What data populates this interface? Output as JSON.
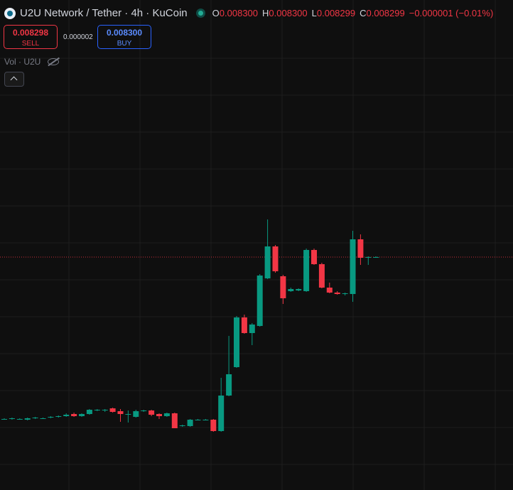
{
  "header": {
    "symbol": "U2U Network / Tether · 4h · KuCoin",
    "o_label": "O",
    "o": "0.008300",
    "h_label": "H",
    "h": "0.008300",
    "l_label": "L",
    "l": "0.008299",
    "c_label": "C",
    "c": "0.008299",
    "change": "−0.000001 (−0.01%)",
    "sell_price": "0.008298",
    "sell": "SELL",
    "spread": "0.000002",
    "buy_price": "0.008300",
    "buy": "BUY",
    "volume": "Vol · U2U"
  },
  "chart_data": {
    "type": "candlestick",
    "up_color": "#089981",
    "down_color": "#f23645",
    "ylim": [
      0.00502,
      0.01192
    ],
    "open": [
      0.00602,
      0.00602,
      0.00602,
      0.00601,
      0.00603,
      0.00603,
      0.00604,
      0.00605,
      0.00606,
      0.00609,
      0.00606,
      0.00609,
      0.00614,
      0.00614,
      0.00617,
      0.00613,
      0.00609,
      0.00605,
      0.00613,
      0.00614,
      0.00609,
      0.00606,
      0.0061,
      0.00592,
      0.00592,
      0.00601,
      0.00601,
      0.00601,
      0.00585,
      0.00635,
      0.00675,
      0.00745,
      0.00723,
      0.00733,
      0.008,
      0.00845,
      0.00803,
      0.00782,
      0.00783,
      0.00782,
      0.0084,
      0.0082,
      0.00787,
      0.0078,
      0.00778,
      0.00778,
      0.00855,
      0.00829,
      0.0083
    ],
    "high": [
      0.00603,
      0.00604,
      0.00603,
      0.00604,
      0.00605,
      0.00604,
      0.00606,
      0.00607,
      0.0061,
      0.00611,
      0.0061,
      0.00616,
      0.00616,
      0.00616,
      0.00618,
      0.00616,
      0.00614,
      0.00615,
      0.00615,
      0.00615,
      0.0061,
      0.00611,
      0.00611,
      0.00594,
      0.00602,
      0.00602,
      0.00602,
      0.00602,
      0.0066,
      0.00719,
      0.00747,
      0.00749,
      0.00737,
      0.00806,
      0.00883,
      0.00847,
      0.00805,
      0.00787,
      0.00786,
      0.00842,
      0.00842,
      0.00822,
      0.00794,
      0.00782,
      0.0078,
      0.00867,
      0.00862,
      0.00831,
      0.00831
    ],
    "low": [
      0.00601,
      0.00601,
      0.00601,
      0.006,
      0.00602,
      0.00602,
      0.00603,
      0.00604,
      0.00605,
      0.00605,
      0.00605,
      0.00608,
      0.00613,
      0.00612,
      0.00611,
      0.00598,
      0.00597,
      0.00604,
      0.00612,
      0.00606,
      0.00602,
      0.00605,
      0.00589,
      0.00591,
      0.00591,
      0.006,
      0.006,
      0.00584,
      0.00584,
      0.00634,
      0.00674,
      0.00722,
      0.00706,
      0.00732,
      0.00799,
      0.00808,
      0.00764,
      0.00781,
      0.00782,
      0.00781,
      0.00819,
      0.00786,
      0.00779,
      0.00777,
      0.00776,
      0.00767,
      0.00819,
      0.00819,
      0.00829
    ],
    "close": [
      0.00602,
      0.00603,
      0.00602,
      0.00603,
      0.00604,
      0.00603,
      0.00605,
      0.00606,
      0.00608,
      0.00606,
      0.00609,
      0.00615,
      0.00615,
      0.00615,
      0.00612,
      0.00609,
      0.00609,
      0.00613,
      0.00614,
      0.00608,
      0.00606,
      0.0061,
      0.00589,
      0.00593,
      0.00601,
      0.00601,
      0.00601,
      0.00585,
      0.00635,
      0.00665,
      0.00745,
      0.00723,
      0.00735,
      0.00804,
      0.00845,
      0.0081,
      0.00772,
      0.00785,
      0.00785,
      0.0084,
      0.0082,
      0.00787,
      0.0078,
      0.00778,
      0.00779,
      0.00855,
      0.00829,
      0.0083,
      0.0083
    ]
  }
}
